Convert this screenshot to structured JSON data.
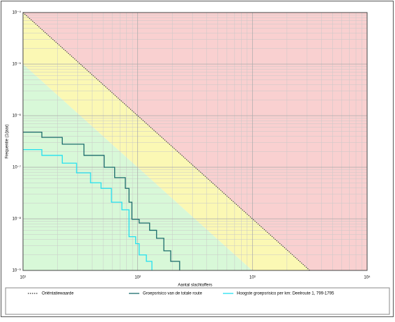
{
  "chart_data": {
    "type": "line",
    "x_label": "Aantal slachtoffers",
    "y_label": "Frequentie (1/jaar)",
    "log_x": true,
    "log_y": true,
    "grid": true,
    "xlim": [
      10,
      10000
    ],
    "ylim": [
      1e-09,
      0.0001
    ],
    "xticks": [
      {
        "value": 10,
        "label": "10¹"
      },
      {
        "value": 100,
        "label": "10²"
      },
      {
        "value": 1000,
        "label": "10³"
      },
      {
        "value": 10000,
        "label": "10⁴"
      }
    ],
    "yticks": [
      {
        "value": 1e-09,
        "label": "10⁻⁹"
      },
      {
        "value": 1e-08,
        "label": "10⁻⁸"
      },
      {
        "value": 1e-07,
        "label": "10⁻⁷"
      },
      {
        "value": 1e-06,
        "label": "10⁻⁶"
      },
      {
        "value": 1e-05,
        "label": "10⁻⁵"
      },
      {
        "value": 0.0001,
        "label": "10⁻⁴"
      }
    ],
    "series": [
      {
        "name": "Oriëntatiewaarde",
        "color": "#333333",
        "style": "dotted",
        "x": [
          10,
          3162
        ],
        "values": [
          0.0001,
          1e-09
        ]
      },
      {
        "name": "Groepsrisico van de totale route",
        "color": "#1a6b6b",
        "style": "step",
        "x": [
          10,
          14.6,
          22,
          34,
          51,
          63,
          78,
          84,
          89,
          103,
          127,
          146,
          169,
          194,
          232
        ],
        "values": [
          4.8e-07,
          3.8e-07,
          2.8e-07,
          1.7e-07,
          1e-07,
          6.3e-08,
          3.9e-08,
          2.1e-08,
          9.8e-09,
          8.3e-09,
          6e-09,
          4.2e-09,
          2.4e-09,
          1.5e-09,
          1e-09
        ]
      },
      {
        "name": "Hoogste groepsrisico per km: Deelroute 1, 799-1795",
        "color": "#22e0f0",
        "style": "step",
        "x": [
          10,
          14.6,
          22,
          29.3,
          38.8,
          47.9,
          59,
          72.8,
          84,
          96,
          103,
          119,
          133
        ],
        "values": [
          2.2e-07,
          1.7e-07,
          1.2e-07,
          7.8e-08,
          5e-08,
          3.9e-08,
          2.1e-08,
          1.5e-08,
          4.5e-09,
          3.3e-09,
          2e-09,
          1.5e-09,
          1e-09
        ]
      }
    ]
  }
}
